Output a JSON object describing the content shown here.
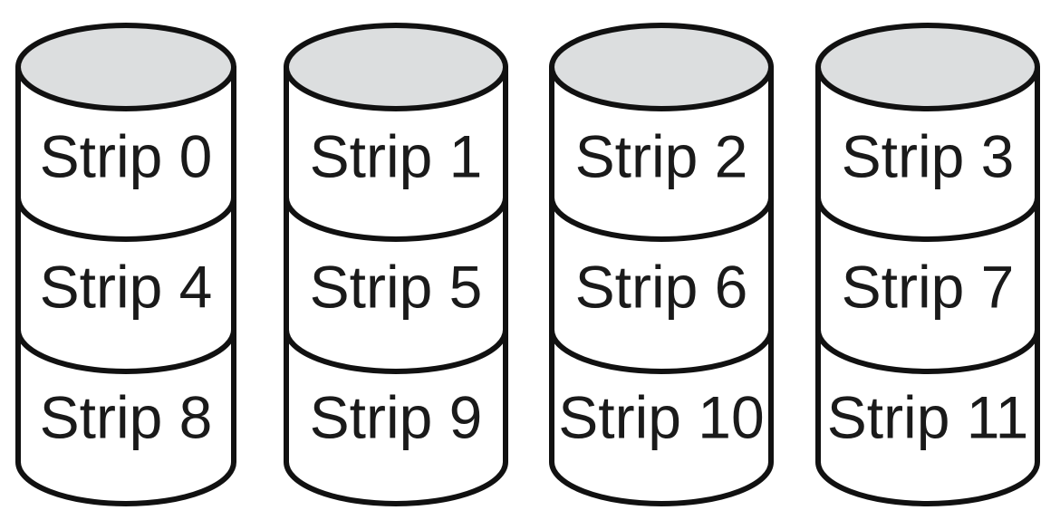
{
  "colors": {
    "top_fill": "#dcdedf",
    "body_fill": "#ffffff",
    "stroke": "#111111",
    "text": "#1a1a1a"
  },
  "disks": [
    {
      "strips": [
        "Strip 0",
        "Strip 4",
        "Strip 8"
      ]
    },
    {
      "strips": [
        "Strip 1",
        "Strip 5",
        "Strip 9"
      ]
    },
    {
      "strips": [
        "Strip 2",
        "Strip 6",
        "Strip 10"
      ]
    },
    {
      "strips": [
        "Strip 3",
        "Strip 7",
        "Strip 11"
      ]
    }
  ]
}
